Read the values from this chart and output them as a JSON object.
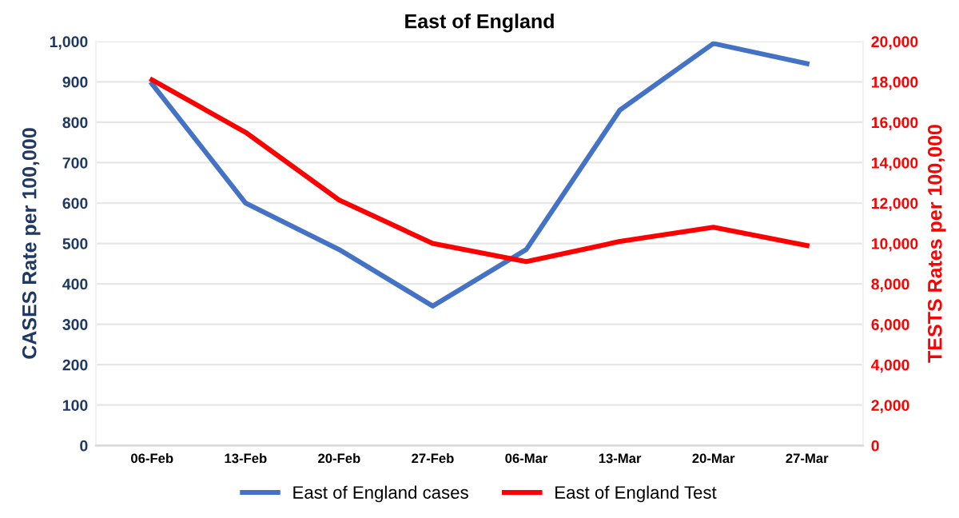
{
  "chart_data": {
    "type": "line",
    "title": "East of England",
    "ylabel": "CASES Rate per 100,000",
    "y2label": "TESTS Rates per 100,000",
    "categories": [
      "06-Feb",
      "13-Feb",
      "20-Feb",
      "27-Feb",
      "06-Mar",
      "13-Mar",
      "20-Mar",
      "27-Mar"
    ],
    "series": [
      {
        "name": "East of England cases",
        "color": "#4472c4",
        "values": [
          895,
          600,
          485,
          345,
          485,
          830,
          995,
          945
        ]
      },
      {
        "name": "East of England Test",
        "color": "#ff0000",
        "axis": "y2",
        "values": [
          18100,
          15500,
          12150,
          10000,
          9100,
          10100,
          10800,
          9900
        ]
      }
    ],
    "ylim": [
      0,
      1000
    ],
    "yticks": [
      0,
      {
        "value": 100,
        "label": "100"
      },
      {
        "value": 200,
        "label": "200"
      },
      300,
      400,
      500,
      600,
      700,
      800,
      900,
      {
        "value": 1000,
        "label": "1,000"
      }
    ],
    "y2lim": [
      0,
      20000
    ],
    "y2ticks": [
      0,
      {
        "value": 2000,
        "label": "2,000"
      },
      {
        "value": 4000,
        "label": "4,000"
      },
      {
        "value": 6000,
        "label": "6,000"
      },
      {
        "value": 8000,
        "label": "8,000"
      },
      {
        "value": 10000,
        "label": "10,000"
      },
      {
        "value": 12000,
        "label": "12,000"
      },
      {
        "value": 14000,
        "label": "14,000"
      },
      {
        "value": 16000,
        "label": "16,000"
      },
      {
        "value": 18000,
        "label": "18,000"
      },
      {
        "value": 20000,
        "label": "20,000"
      }
    ],
    "grid": "y",
    "legend": "bottom",
    "marker": "none",
    "line_style": "solid"
  }
}
